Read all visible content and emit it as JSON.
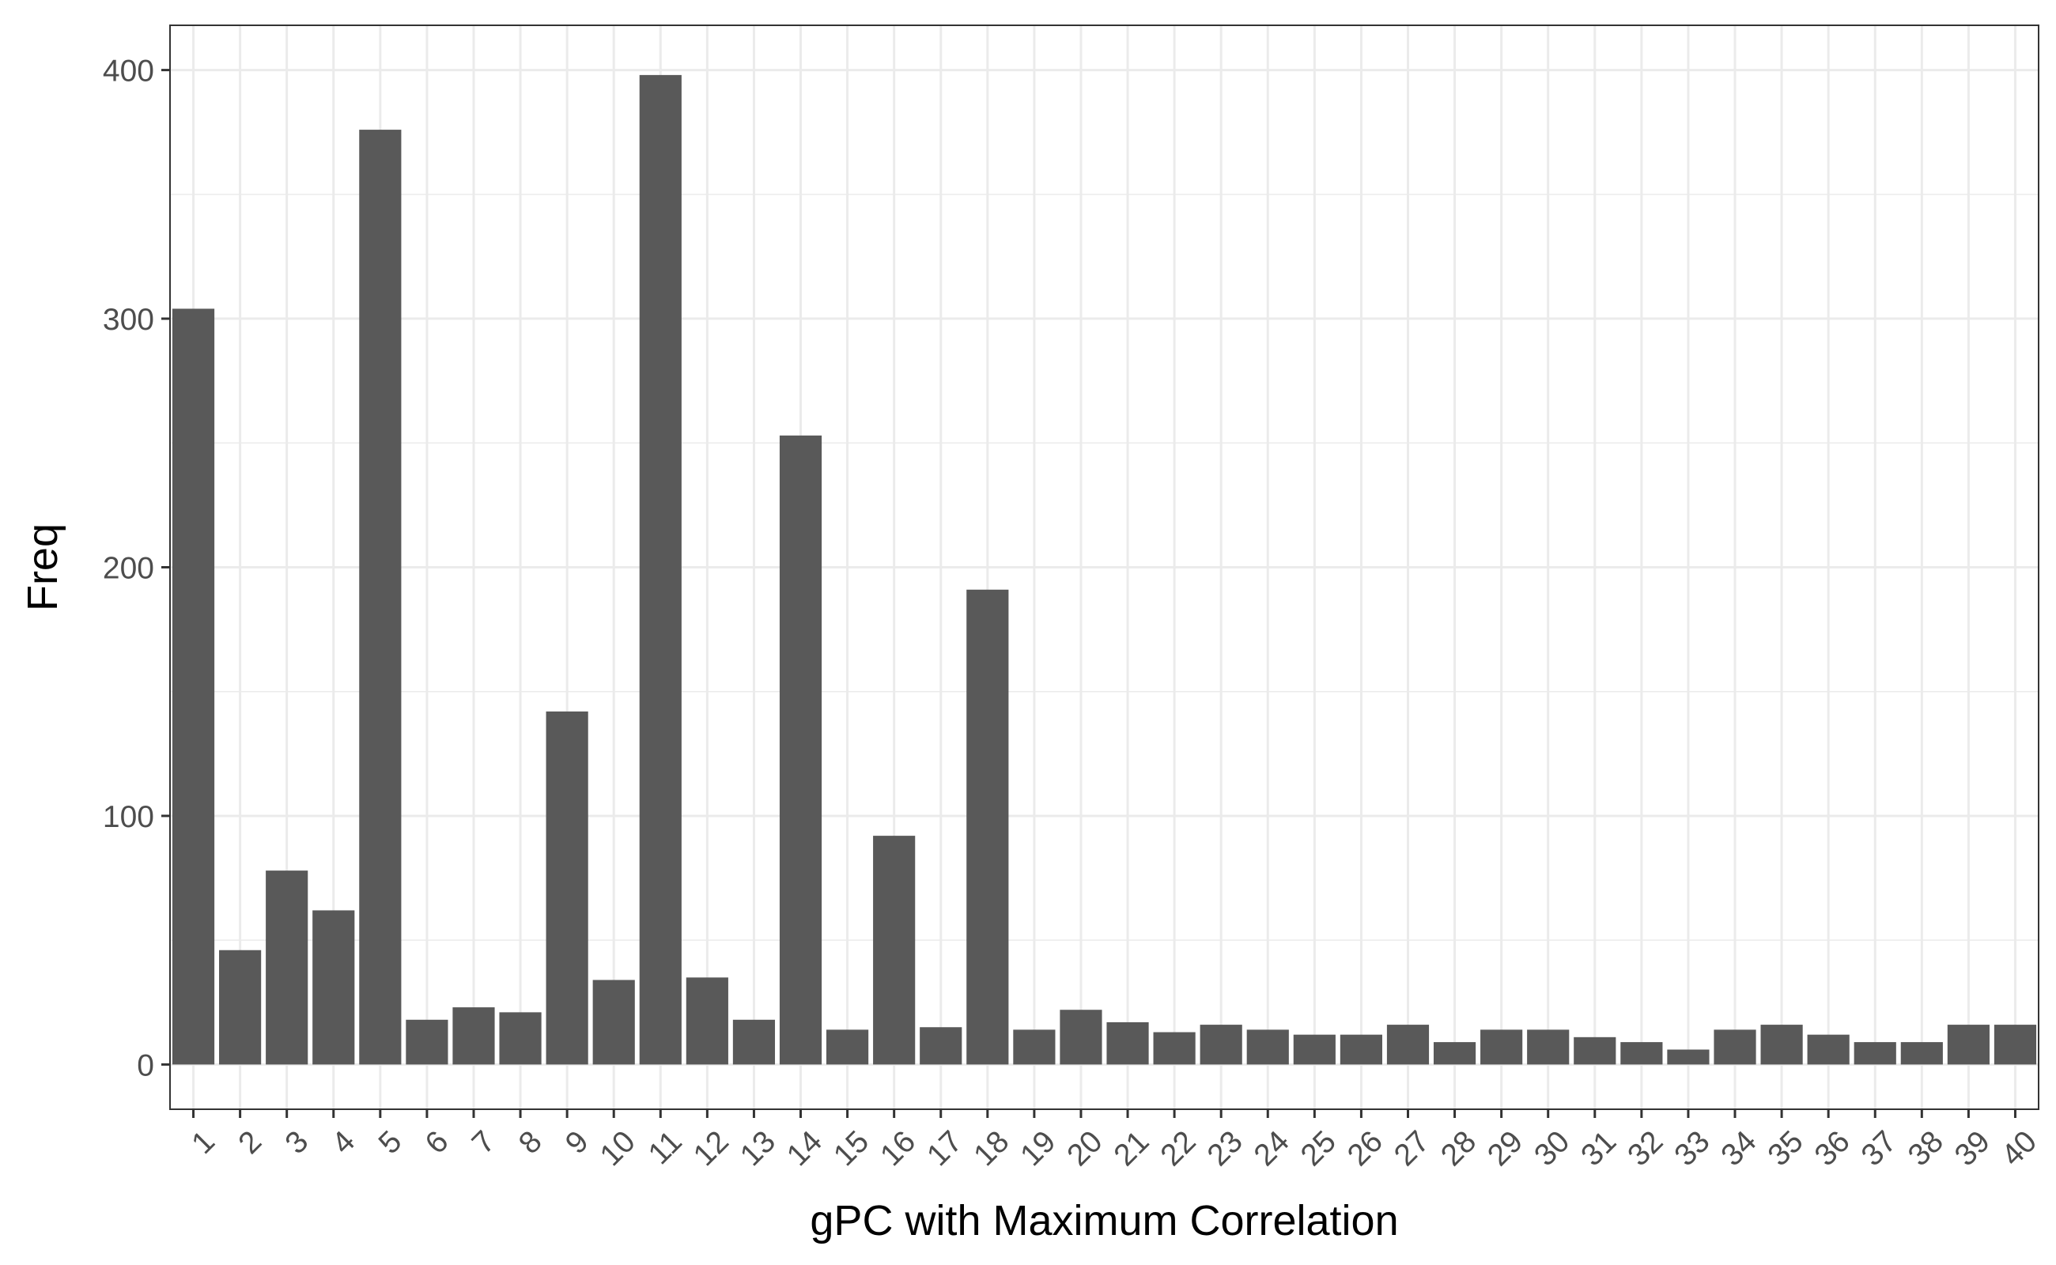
{
  "chart_data": {
    "type": "bar",
    "title": "",
    "xlabel": "gPC with Maximum Correlation",
    "ylabel": "Freq",
    "categories": [
      "1",
      "2",
      "3",
      "4",
      "5",
      "6",
      "7",
      "8",
      "9",
      "10",
      "11",
      "12",
      "13",
      "14",
      "15",
      "16",
      "17",
      "18",
      "19",
      "20",
      "21",
      "22",
      "23",
      "24",
      "25",
      "26",
      "27",
      "28",
      "29",
      "30",
      "31",
      "32",
      "33",
      "34",
      "35",
      "36",
      "37",
      "38",
      "39",
      "40"
    ],
    "values": [
      304,
      46,
      78,
      62,
      376,
      18,
      23,
      21,
      142,
      34,
      398,
      35,
      18,
      253,
      14,
      92,
      15,
      191,
      14,
      22,
      17,
      13,
      16,
      14,
      12,
      12,
      16,
      9,
      14,
      14,
      11,
      9,
      6,
      14,
      16,
      12,
      9,
      9,
      16,
      16
    ],
    "ylim": [
      -18,
      418
    ],
    "yticks": [
      0,
      100,
      200,
      300,
      400
    ],
    "grid": true,
    "legend": "none",
    "bar_color": "#595959",
    "grid_color": "#ebebeb",
    "panel_border_color": "#333333"
  }
}
